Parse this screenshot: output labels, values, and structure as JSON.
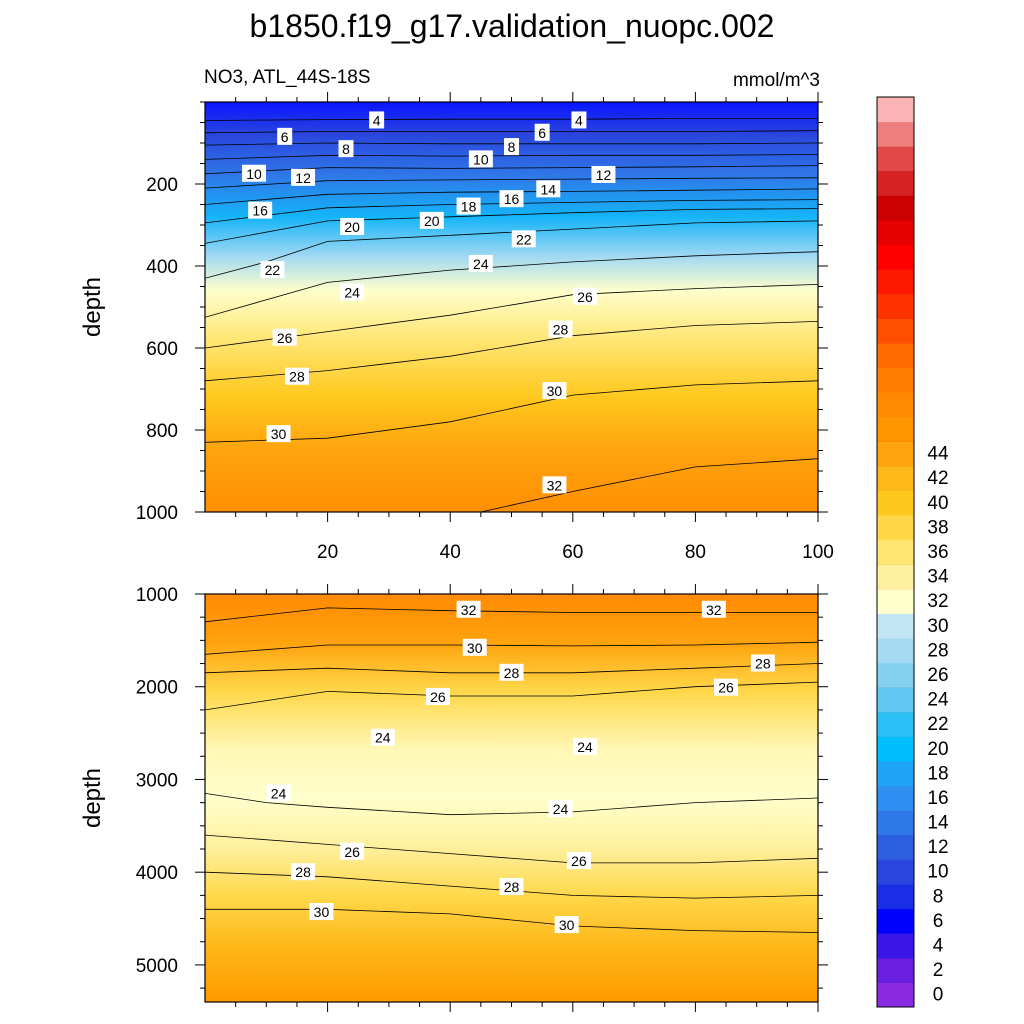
{
  "title": "b1850.f19_g17.validation_nuopc.002",
  "chart_data": [
    {
      "type": "heatmap",
      "panel": "upper",
      "left_label": "NO3, ATL_44S-18S",
      "right_label": "mmol/m^3",
      "xlabel": "",
      "ylabel": "depth",
      "xlim": [
        0,
        100
      ],
      "ylim": [
        1000,
        0
      ],
      "x_ticks": [
        20,
        40,
        60,
        80,
        100
      ],
      "y_ticks": [
        200,
        400,
        600,
        800,
        1000
      ],
      "grid": false,
      "contours": [
        {
          "level": 4,
          "points": [
            [
              0,
              45
            ],
            [
              20,
              43
            ],
            [
              40,
              42
            ],
            [
              60,
              42
            ],
            [
              80,
              40
            ],
            [
              100,
              40
            ]
          ]
        },
        {
          "level": 6,
          "points": [
            [
              0,
              75
            ],
            [
              20,
              72
            ],
            [
              40,
              72
            ],
            [
              60,
              72
            ],
            [
              80,
              72
            ],
            [
              100,
              70
            ]
          ]
        },
        {
          "level": 8,
          "points": [
            [
              0,
              105
            ],
            [
              20,
              100
            ],
            [
              40,
              102
            ],
            [
              60,
              102
            ],
            [
              80,
              102
            ],
            [
              100,
              100
            ]
          ]
        },
        {
          "level": 10,
          "points": [
            [
              0,
              140
            ],
            [
              20,
              130
            ],
            [
              40,
              132
            ],
            [
              60,
              130
            ],
            [
              80,
              130
            ],
            [
              100,
              128
            ]
          ]
        },
        {
          "level": 12,
          "points": [
            [
              0,
              175
            ],
            [
              20,
              160
            ],
            [
              40,
              162
            ],
            [
              60,
              160
            ],
            [
              80,
              158
            ],
            [
              100,
              155
            ]
          ]
        },
        {
          "level": 14,
          "points": [
            [
              0,
              210
            ],
            [
              20,
              192
            ],
            [
              40,
              190
            ],
            [
              60,
              188
            ],
            [
              80,
              186
            ],
            [
              100,
              185
            ]
          ]
        },
        {
          "level": 16,
          "points": [
            [
              0,
              250
            ],
            [
              20,
              225
            ],
            [
              40,
              220
            ],
            [
              60,
              218
            ],
            [
              80,
              215
            ],
            [
              100,
              212
            ]
          ]
        },
        {
          "level": 18,
          "points": [
            [
              0,
              295
            ],
            [
              20,
              258
            ],
            [
              40,
              250
            ],
            [
              60,
              245
            ],
            [
              80,
              240
            ],
            [
              100,
              238
            ]
          ]
        },
        {
          "level": 20,
          "points": [
            [
              0,
              345
            ],
            [
              20,
              290
            ],
            [
              40,
              280
            ],
            [
              60,
              270
            ],
            [
              80,
              262
            ],
            [
              100,
              260
            ]
          ]
        },
        {
          "level": 22,
          "points": [
            [
              0,
              430
            ],
            [
              10,
              390
            ],
            [
              20,
              340
            ],
            [
              40,
              325
            ],
            [
              60,
              310
            ],
            [
              80,
              295
            ],
            [
              100,
              290
            ]
          ]
        },
        {
          "level": 24,
          "points": [
            [
              0,
              525
            ],
            [
              20,
              440
            ],
            [
              40,
              410
            ],
            [
              60,
              390
            ],
            [
              80,
              375
            ],
            [
              100,
              365
            ]
          ]
        },
        {
          "level": 26,
          "points": [
            [
              0,
              600
            ],
            [
              20,
              560
            ],
            [
              40,
              520
            ],
            [
              60,
              470
            ],
            [
              80,
              455
            ],
            [
              100,
              445
            ]
          ]
        },
        {
          "level": 28,
          "points": [
            [
              0,
              680
            ],
            [
              20,
              655
            ],
            [
              40,
              620
            ],
            [
              60,
              570
            ],
            [
              80,
              545
            ],
            [
              100,
              535
            ]
          ]
        },
        {
          "level": 30,
          "points": [
            [
              0,
              830
            ],
            [
              20,
              820
            ],
            [
              40,
              780
            ],
            [
              60,
              715
            ],
            [
              80,
              690
            ],
            [
              100,
              680
            ]
          ]
        },
        {
          "level": 32,
          "points": [
            [
              45,
              1000
            ],
            [
              60,
              950
            ],
            [
              80,
              890
            ],
            [
              100,
              870
            ]
          ]
        }
      ],
      "contour_labels": [
        {
          "text": "4",
          "x": 28,
          "y": 45
        },
        {
          "text": "4",
          "x": 61,
          "y": 45
        },
        {
          "text": "6",
          "x": 13,
          "y": 85
        },
        {
          "text": "6",
          "x": 55,
          "y": 75
        },
        {
          "text": "8",
          "x": 23,
          "y": 115
        },
        {
          "text": "8",
          "x": 50,
          "y": 110
        },
        {
          "text": "10",
          "x": 8,
          "y": 175
        },
        {
          "text": "10",
          "x": 45,
          "y": 140
        },
        {
          "text": "12",
          "x": 16,
          "y": 185
        },
        {
          "text": "12",
          "x": 65,
          "y": 178
        },
        {
          "text": "14",
          "x": 56,
          "y": 213
        },
        {
          "text": "16",
          "x": 9,
          "y": 265
        },
        {
          "text": "16",
          "x": 50,
          "y": 237
        },
        {
          "text": "18",
          "x": 43,
          "y": 255
        },
        {
          "text": "20",
          "x": 24,
          "y": 305
        },
        {
          "text": "20",
          "x": 37,
          "y": 290
        },
        {
          "text": "22",
          "x": 11,
          "y": 410
        },
        {
          "text": "22",
          "x": 52,
          "y": 335
        },
        {
          "text": "24",
          "x": 24,
          "y": 465
        },
        {
          "text": "24",
          "x": 45,
          "y": 395
        },
        {
          "text": "26",
          "x": 13,
          "y": 575
        },
        {
          "text": "26",
          "x": 62,
          "y": 475
        },
        {
          "text": "28",
          "x": 15,
          "y": 670
        },
        {
          "text": "28",
          "x": 58,
          "y": 555
        },
        {
          "text": "30",
          "x": 12,
          "y": 810
        },
        {
          "text": "30",
          "x": 57,
          "y": 705
        },
        {
          "text": "32",
          "x": 57,
          "y": 935
        }
      ]
    },
    {
      "type": "heatmap",
      "panel": "lower",
      "xlabel": "",
      "ylabel": "depth",
      "xlim": [
        0,
        100
      ],
      "ylim": [
        5400,
        1000
      ],
      "y_ticks": [
        1000,
        2000,
        3000,
        4000,
        5000
      ],
      "grid": false,
      "contours": [
        {
          "level": 32,
          "points": [
            [
              0,
              1300
            ],
            [
              20,
              1150
            ],
            [
              40,
              1180
            ],
            [
              60,
              1200
            ],
            [
              80,
              1200
            ],
            [
              100,
              1200
            ]
          ]
        },
        {
          "level": 30,
          "points": [
            [
              0,
              1650
            ],
            [
              20,
              1550
            ],
            [
              40,
              1550
            ],
            [
              60,
              1560
            ],
            [
              80,
              1550
            ],
            [
              100,
              1520
            ]
          ]
        },
        {
          "level": 28,
          "points": [
            [
              0,
              1850
            ],
            [
              20,
              1800
            ],
            [
              40,
              1850
            ],
            [
              60,
              1850
            ],
            [
              80,
              1800
            ],
            [
              100,
              1750
            ]
          ]
        },
        {
          "level": 26,
          "points": [
            [
              0,
              2250
            ],
            [
              20,
              2050
            ],
            [
              40,
              2100
            ],
            [
              60,
              2100
            ],
            [
              80,
              2000
            ],
            [
              100,
              1950
            ]
          ]
        },
        {
          "level": 24,
          "points": [
            [
              0,
              3150
            ],
            [
              10,
              3250
            ],
            [
              20,
              3300
            ],
            [
              40,
              3380
            ],
            [
              60,
              3350
            ],
            [
              80,
              3250
            ],
            [
              100,
              3200
            ]
          ]
        },
        {
          "level": 26,
          "points": [
            [
              0,
              3600
            ],
            [
              20,
              3700
            ],
            [
              40,
              3800
            ],
            [
              60,
              3900
            ],
            [
              80,
              3900
            ],
            [
              100,
              3850
            ]
          ]
        },
        {
          "level": 28,
          "points": [
            [
              0,
              4000
            ],
            [
              20,
              4050
            ],
            [
              40,
              4150
            ],
            [
              60,
              4250
            ],
            [
              80,
              4280
            ],
            [
              100,
              4250
            ]
          ]
        },
        {
          "level": 30,
          "points": [
            [
              0,
              4400
            ],
            [
              20,
              4400
            ],
            [
              40,
              4450
            ],
            [
              60,
              4580
            ],
            [
              80,
              4630
            ],
            [
              100,
              4650
            ]
          ]
        }
      ],
      "contour_labels": [
        {
          "text": "32",
          "x": 43,
          "y": 1170
        },
        {
          "text": "32",
          "x": 83,
          "y": 1170
        },
        {
          "text": "30",
          "x": 44,
          "y": 1580
        },
        {
          "text": "28",
          "x": 50,
          "y": 1850
        },
        {
          "text": "28",
          "x": 91,
          "y": 1750
        },
        {
          "text": "26",
          "x": 38,
          "y": 2110
        },
        {
          "text": "26",
          "x": 85,
          "y": 2010
        },
        {
          "text": "24",
          "x": 29,
          "y": 2550
        },
        {
          "text": "24",
          "x": 62,
          "y": 2650
        },
        {
          "text": "24",
          "x": 12,
          "y": 3150
        },
        {
          "text": "24",
          "x": 58,
          "y": 3320
        },
        {
          "text": "26",
          "x": 24,
          "y": 3780
        },
        {
          "text": "26",
          "x": 61,
          "y": 3880
        },
        {
          "text": "28",
          "x": 16,
          "y": 4000
        },
        {
          "text": "28",
          "x": 50,
          "y": 4160
        },
        {
          "text": "30",
          "x": 19,
          "y": 4430
        },
        {
          "text": "30",
          "x": 59,
          "y": 4570
        }
      ]
    }
  ],
  "colorbar": {
    "labels": [
      "0",
      "2",
      "4",
      "6",
      "8",
      "10",
      "12",
      "14",
      "16",
      "18",
      "20",
      "22",
      "24",
      "26",
      "28",
      "30",
      "32",
      "34",
      "36",
      "38",
      "40",
      "42",
      "44"
    ],
    "colors": [
      "#8a2be2",
      "#6a1ee0",
      "#3a16e8",
      "#0000ff",
      "#1a2ee6",
      "#2a46dd",
      "#2c5ee0",
      "#2f78e8",
      "#2f8ff0",
      "#1ea5f5",
      "#00bfff",
      "#2bc0f6",
      "#60c8f2",
      "#84d0f0",
      "#a6daf2",
      "#c2e4f4",
      "#ffffcc",
      "#fff09e",
      "#ffe673",
      "#ffd84a",
      "#ffc81e",
      "#ffb81a",
      "#ffa30e",
      "#ff9600",
      "#ff8a00",
      "#ff7d00",
      "#ff6a00",
      "#ff5000",
      "#ff3300",
      "#ff1800",
      "#ff0000",
      "#e60000",
      "#cc0000",
      "#d62222",
      "#e24848",
      "#ef7f7f",
      "#fab4b4"
    ]
  }
}
